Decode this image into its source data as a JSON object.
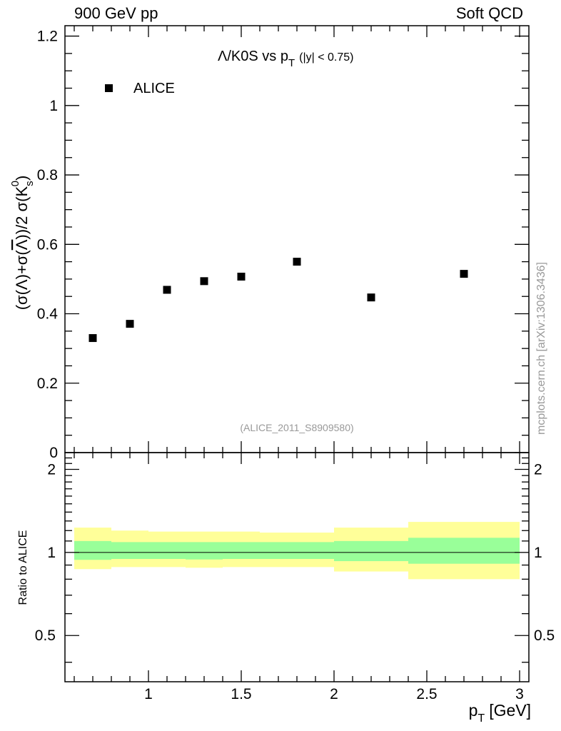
{
  "header": {
    "left": "900 GeV pp",
    "right": "Soft QCD"
  },
  "side_label": "mcplots.cern.ch [arXiv:1306.3436]",
  "colors": {
    "band_inner": "#99ff99",
    "band_outer": "#ffff99",
    "marker": "#000000",
    "watermark": "#999999"
  },
  "chart_data": [
    {
      "type": "scatter",
      "title_parts": {
        "main": "Λ/K0S vs p",
        "sub": "T",
        "cut": "(|y| < 0.75)"
      },
      "ylabel_parts": {
        "a": "(σ(Λ)+σ(",
        "bar": "Λ",
        "b": "))/2 σ(K",
        "sub": "s",
        "sup": "0",
        "c": ")"
      },
      "legend": [
        {
          "label": "ALICE",
          "marker": "square"
        }
      ],
      "watermark": "(ALICE_2011_S8909580)",
      "xlim": [
        0.55,
        3.05
      ],
      "ylim": [
        0,
        1.23
      ],
      "yticks": [
        0,
        0.2,
        0.4,
        0.6,
        0.8,
        1,
        1.2
      ],
      "ytick_labels": [
        "0",
        "0.2",
        "0.4",
        "0.6",
        "0.8",
        "1",
        "1.2"
      ],
      "series": [
        {
          "name": "ALICE",
          "x": [
            0.7,
            0.9,
            1.1,
            1.3,
            1.5,
            1.8,
            2.2,
            2.7
          ],
          "y": [
            0.33,
            0.371,
            0.469,
            0.494,
            0.507,
            0.55,
            0.447,
            0.515
          ]
        }
      ]
    },
    {
      "type": "area",
      "ylabel": "Ratio to ALICE",
      "xlabel_parts": {
        "main": "p",
        "sub": "T",
        "unit": "[GeV]"
      },
      "xlim": [
        0.55,
        3.05
      ],
      "ylim": [
        0.34,
        2.3
      ],
      "yscale": "log",
      "xticks": [
        1,
        1.5,
        2,
        2.5,
        3
      ],
      "xtick_labels": [
        "1",
        "1.5",
        "2",
        "2.5",
        "3"
      ],
      "yticks": [
        0.5,
        1,
        2
      ],
      "ytick_labels": [
        "0.5",
        "1",
        "2"
      ],
      "reference_line": 1,
      "bins": [
        {
          "x0": 0.6,
          "x1": 0.8,
          "inner": [
            0.94,
            1.1
          ],
          "outer": [
            0.87,
            1.23
          ]
        },
        {
          "x0": 0.8,
          "x1": 1.0,
          "inner": [
            0.947,
            1.09
          ],
          "outer": [
            0.885,
            1.2
          ]
        },
        {
          "x0": 1.0,
          "x1": 1.2,
          "inner": [
            0.947,
            1.09
          ],
          "outer": [
            0.885,
            1.19
          ]
        },
        {
          "x0": 1.2,
          "x1": 1.4,
          "inner": [
            0.943,
            1.09
          ],
          "outer": [
            0.88,
            1.19
          ]
        },
        {
          "x0": 1.4,
          "x1": 1.6,
          "inner": [
            0.947,
            1.09
          ],
          "outer": [
            0.885,
            1.19
          ]
        },
        {
          "x0": 1.6,
          "x1": 2.0,
          "inner": [
            0.947,
            1.09
          ],
          "outer": [
            0.885,
            1.18
          ]
        },
        {
          "x0": 2.0,
          "x1": 2.4,
          "inner": [
            0.93,
            1.1
          ],
          "outer": [
            0.853,
            1.23
          ]
        },
        {
          "x0": 2.4,
          "x1": 3.0,
          "inner": [
            0.91,
            1.13
          ],
          "outer": [
            0.8,
            1.29
          ]
        }
      ]
    }
  ]
}
